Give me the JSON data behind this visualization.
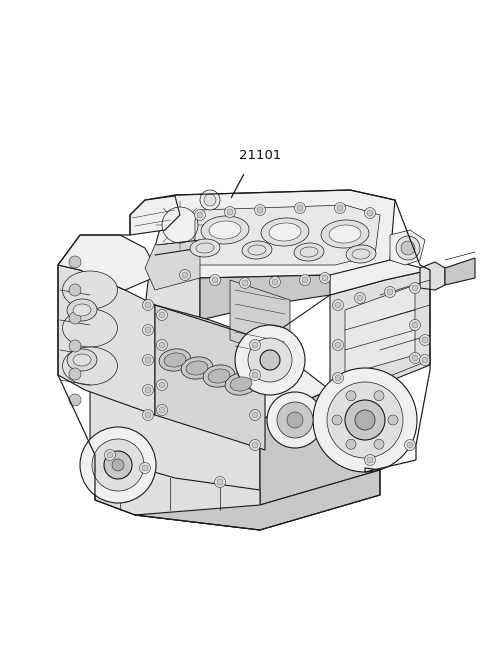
{
  "background_color": "#ffffff",
  "part_number": "21101",
  "line_color": "#1a1a1a",
  "fill_light": "#f0f0f0",
  "fill_mid": "#e0e0e0",
  "fill_dark": "#c8c8c8",
  "fill_darker": "#b0b0b0",
  "lw_main": 0.8,
  "lw_detail": 0.5,
  "lw_thin": 0.35
}
